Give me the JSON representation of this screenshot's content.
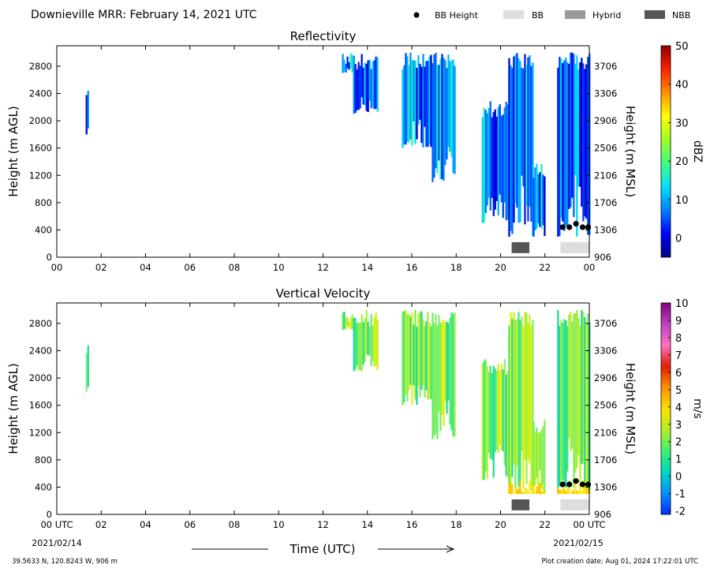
{
  "header": {
    "title": "Downieville MRR:  February 14, 2021 UTC",
    "legend": [
      {
        "label": "BB Height",
        "kind": "dot",
        "color": "#000000"
      },
      {
        "label": "BB",
        "kind": "swatch",
        "color": "#dddddd"
      },
      {
        "label": "Hybrid",
        "kind": "swatch",
        "color": "#999999"
      },
      {
        "label": "NBB",
        "kind": "swatch",
        "color": "#555555"
      }
    ]
  },
  "footer": {
    "xlabel": "Time (UTC)",
    "start_date": "2021/02/14",
    "end_date": "2021/02/15",
    "location": "39.5633 N, 120.8243 W, 906 m",
    "creation": "Plot creation date: Aug 01, 2024 17:22:01 UTC"
  },
  "chart_data": [
    {
      "type": "heatmap",
      "title": "Reflectivity",
      "xlabel": "",
      "ylabel": "Height (m AGL)",
      "y2label": "Height (m MSL)",
      "xticks": [
        "00",
        "02",
        "04",
        "06",
        "08",
        "10",
        "12",
        "14",
        "16",
        "18",
        "20",
        "22",
        "00"
      ],
      "xlim": [
        0,
        24
      ],
      "yticks": [
        0,
        400,
        800,
        1200,
        1600,
        2000,
        2400,
        2800
      ],
      "ylim": [
        0,
        3100
      ],
      "y2ticks": [
        "906",
        "1306",
        "1706",
        "2106",
        "2506",
        "2906",
        "3306",
        "3706"
      ],
      "colorbar": {
        "label": "dBZ",
        "range": [
          -5,
          50
        ],
        "ticks": [
          0,
          10,
          20,
          30,
          40,
          50
        ]
      },
      "bb_height_points": [
        [
          22.8,
          440
        ],
        [
          23.1,
          440
        ],
        [
          23.4,
          490
        ],
        [
          23.7,
          440
        ],
        [
          23.95,
          440
        ]
      ],
      "band_classification": [
        {
          "type": "NBB",
          "start": 20.5,
          "end": 21.3
        },
        {
          "type": "BB",
          "start": 22.7,
          "end": 24.0
        }
      ]
    },
    {
      "type": "heatmap",
      "title": "Vertical Velocity",
      "xlabel": "Time (UTC)",
      "ylabel": "Height (m AGL)",
      "y2label": "Height (m MSL)",
      "xticks": [
        "00 UTC",
        "02",
        "04",
        "06",
        "08",
        "10",
        "12",
        "14",
        "16",
        "18",
        "20",
        "22",
        "00 UTC"
      ],
      "xlim": [
        0,
        24
      ],
      "yticks": [
        0,
        400,
        800,
        1200,
        1600,
        2000,
        2400,
        2800
      ],
      "ylim": [
        0,
        3100
      ],
      "y2ticks": [
        "906",
        "1306",
        "1706",
        "2106",
        "2506",
        "2906",
        "3306",
        "3706"
      ],
      "colorbar": {
        "label": "m/s",
        "range": [
          -2.2,
          10
        ],
        "ticks": [
          -2,
          -1,
          0,
          1,
          2,
          3,
          4,
          5,
          6,
          7,
          8,
          9,
          10
        ]
      },
      "bb_height_points": [
        [
          22.8,
          440
        ],
        [
          23.1,
          440
        ],
        [
          23.4,
          490
        ],
        [
          23.7,
          440
        ],
        [
          23.95,
          440
        ]
      ],
      "band_classification": [
        {
          "type": "NBB",
          "start": 20.5,
          "end": 21.3
        },
        {
          "type": "BB",
          "start": 22.7,
          "end": 24.0
        }
      ]
    }
  ],
  "echo_columns": [
    {
      "t0": 1.3,
      "t1": 1.4,
      "bottom": 1800,
      "top": 2500
    },
    {
      "t0": 12.85,
      "t1": 13.3,
      "bottom": 2700,
      "top": 3000
    },
    {
      "t0": 13.35,
      "t1": 14.45,
      "bottom": 2100,
      "top": 3000
    },
    {
      "t0": 15.55,
      "t1": 16.9,
      "bottom": 1600,
      "top": 3000
    },
    {
      "t0": 16.9,
      "t1": 17.95,
      "bottom": 1100,
      "top": 3000
    },
    {
      "t0": 19.15,
      "t1": 20.35,
      "bottom": 500,
      "top": 2300
    },
    {
      "t0": 20.35,
      "t1": 21.45,
      "bottom": 300,
      "top": 3000
    },
    {
      "t0": 21.45,
      "t1": 21.95,
      "bottom": 300,
      "top": 1400
    },
    {
      "t0": 22.55,
      "t1": 24.0,
      "bottom": 300,
      "top": 3000
    }
  ]
}
